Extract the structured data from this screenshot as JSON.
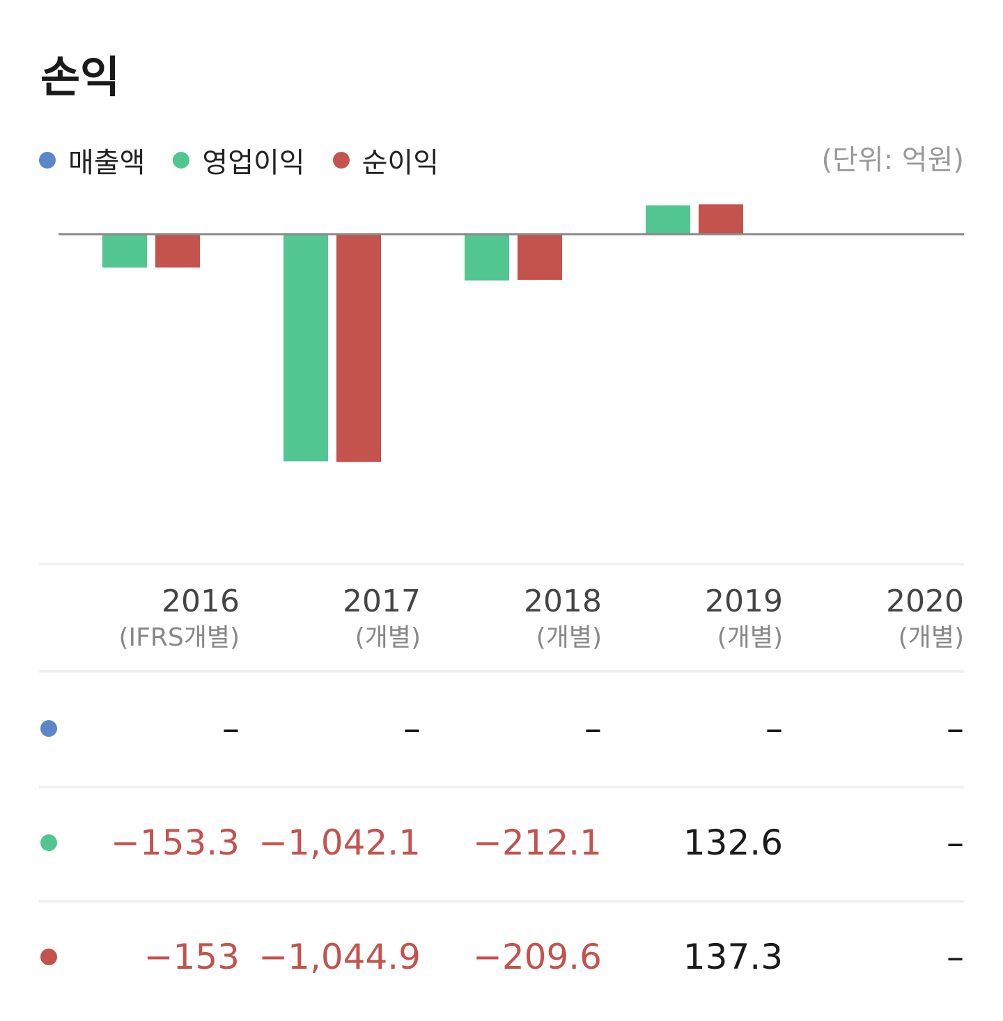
{
  "title": "손익",
  "unit": "(단위: 억원)",
  "legend": [
    {
      "label": "매출액",
      "color": "#5b87c8"
    },
    {
      "label": "영업이익",
      "color": "#52c690"
    },
    {
      "label": "순이익",
      "color": "#c4524d"
    }
  ],
  "chart_data": {
    "type": "bar",
    "categories": [
      "2016",
      "2017",
      "2018",
      "2019",
      "2020"
    ],
    "series": [
      {
        "name": "영업이익",
        "color": "#52c690",
        "values": [
          -153.3,
          -1042.1,
          -212.1,
          132.6,
          null
        ]
      },
      {
        "name": "순이익",
        "color": "#c4524d",
        "values": [
          -153,
          -1044.9,
          -209.6,
          137.3,
          null
        ]
      }
    ],
    "ylim": [
      -1450,
      180
    ]
  },
  "columns": [
    {
      "year": "2016",
      "sub": "(IFRS개별)"
    },
    {
      "year": "2017",
      "sub": "(개별)"
    },
    {
      "year": "2018",
      "sub": "(개별)"
    },
    {
      "year": "2019",
      "sub": "(개별)"
    },
    {
      "year": "2020",
      "sub": "(개별)"
    }
  ],
  "rows": [
    {
      "name": "매출액",
      "color": "#5b87c8",
      "values": [
        "-",
        "-",
        "-",
        "-",
        "-"
      ]
    },
    {
      "name": "영업이익",
      "color": "#52c690",
      "values": [
        "-153.3",
        "-1,042.1",
        "-212.1",
        "132.6",
        "-"
      ]
    },
    {
      "name": "순이익",
      "color": "#c4524d",
      "values": [
        "-153",
        "-1,044.9",
        "-209.6",
        "137.3",
        "-"
      ]
    }
  ]
}
